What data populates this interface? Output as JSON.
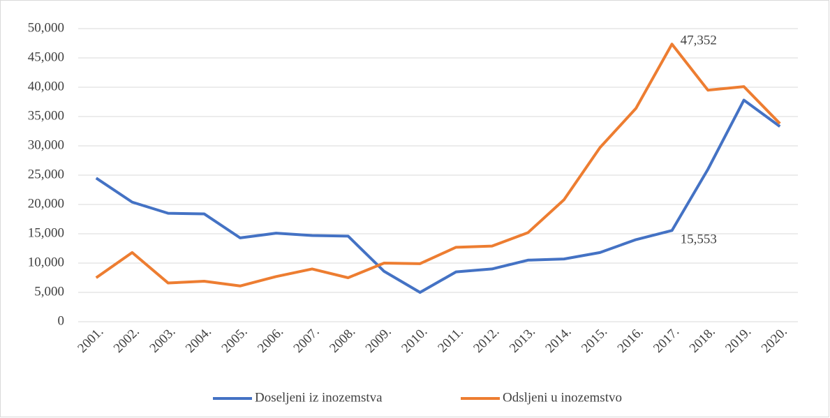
{
  "chart_data": {
    "type": "line",
    "categories": [
      "2001.",
      "2002.",
      "2003.",
      "2004.",
      "2005.",
      "2006.",
      "2007.",
      "2008.",
      "2009.",
      "2010.",
      "2011.",
      "2012.",
      "2013.",
      "2014.",
      "2015.",
      "2016.",
      "2017.",
      "2018.",
      "2019.",
      "2020."
    ],
    "series": [
      {
        "name": "Doseljeni iz inozemstva",
        "color": "#4472c4",
        "values": [
          24500,
          20400,
          18500,
          18400,
          14300,
          15100,
          14700,
          14600,
          8600,
          5000,
          8500,
          9000,
          10500,
          10700,
          11800,
          14000,
          15553,
          26000,
          37800,
          33300
        ],
        "value_labels": [
          null,
          null,
          null,
          null,
          null,
          null,
          null,
          null,
          null,
          null,
          null,
          null,
          null,
          null,
          null,
          null,
          "15,553",
          null,
          null,
          null
        ]
      },
      {
        "name": "Odsljeni u inozemstvo",
        "color": "#ed7d31",
        "values": [
          7500,
          11800,
          6600,
          6900,
          6100,
          7700,
          9000,
          7500,
          10000,
          9900,
          12700,
          12900,
          15200,
          20800,
          29700,
          36400,
          47352,
          39500,
          40100,
          33800
        ],
        "value_labels": [
          null,
          null,
          null,
          null,
          null,
          null,
          null,
          null,
          null,
          null,
          null,
          null,
          null,
          null,
          null,
          null,
          "47,352",
          null,
          null,
          null
        ]
      }
    ],
    "ylim": [
      0,
      50000
    ],
    "yticks": [
      0,
      {
        "value": 5000,
        "label": "5,000"
      },
      {
        "value": 10000,
        "label": "10,000"
      },
      {
        "value": 15000,
        "label": "15,000"
      },
      {
        "value": 20000,
        "label": "20,000"
      },
      {
        "value": 25000,
        "label": "25,000"
      },
      {
        "value": 30000,
        "label": "30,000"
      },
      {
        "value": 35000,
        "label": "35,000"
      },
      {
        "value": 40000,
        "label": "40,000"
      },
      {
        "value": 45000,
        "label": "45,000"
      },
      {
        "value": 50000,
        "label": "50,000"
      }
    ],
    "grid": true,
    "legend": "bottom"
  }
}
